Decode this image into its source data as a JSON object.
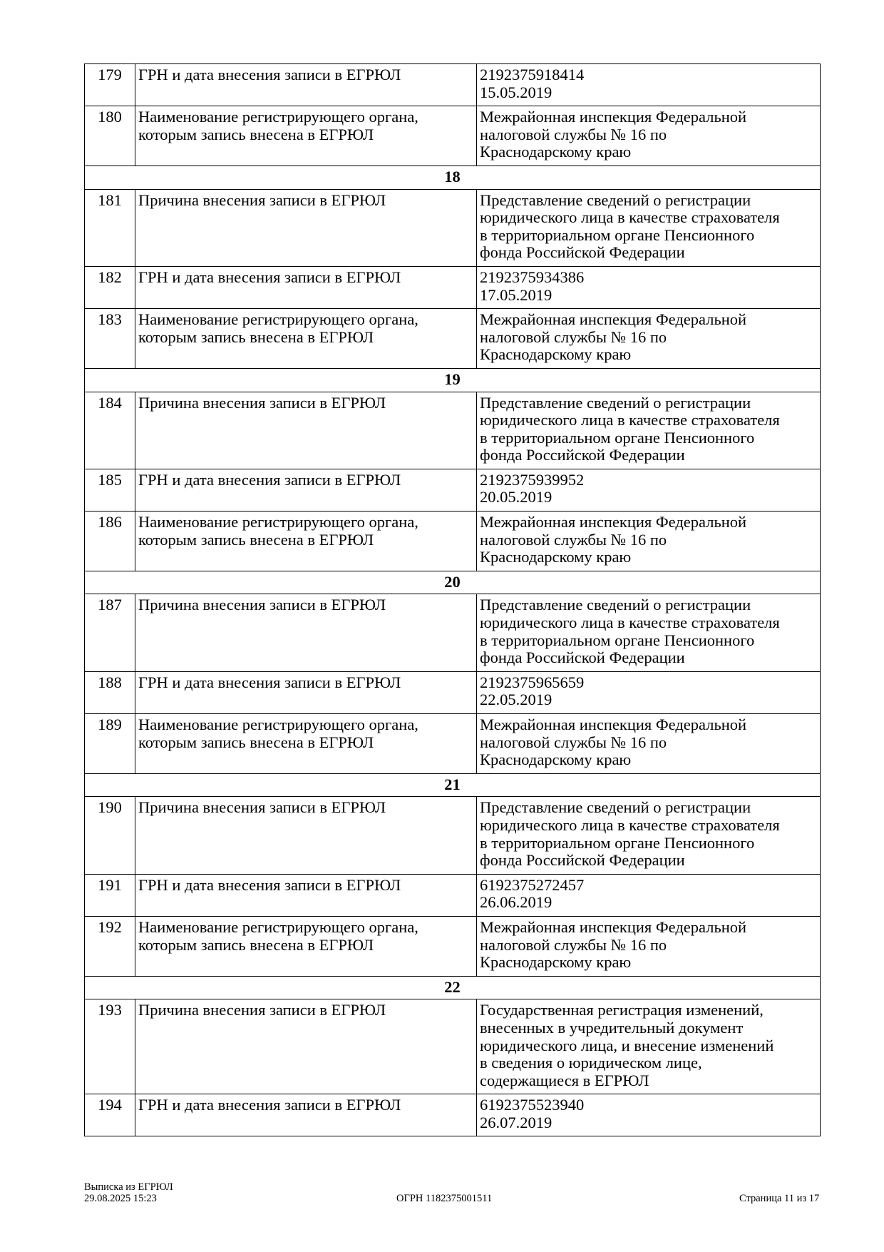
{
  "rows": [
    {
      "type": "row",
      "num": "179",
      "label": "ГРН и дата внесения записи в ЕГРЮЛ",
      "value": [
        "2192375918414",
        "15.05.2019"
      ]
    },
    {
      "type": "row",
      "num": "180",
      "label": "Наименование регистрирующего органа, которым запись внесена в ЕГРЮЛ",
      "value": [
        "Межрайонная инспекция Федеральной",
        "налоговой службы № 16 по",
        "Краснодарскому краю"
      ]
    },
    {
      "type": "section",
      "title": "18"
    },
    {
      "type": "row",
      "num": "181",
      "label": "Причина внесения записи в ЕГРЮЛ",
      "value": [
        "Представление сведений о регистрации",
        "юридического лица в качестве страхователя",
        "в территориальном органе Пенсионного",
        "фонда Российской Федерации"
      ]
    },
    {
      "type": "row",
      "num": "182",
      "label": "ГРН и дата внесения записи в ЕГРЮЛ",
      "value": [
        "2192375934386",
        "17.05.2019"
      ]
    },
    {
      "type": "row",
      "num": "183",
      "label": "Наименование регистрирующего органа, которым запись внесена в ЕГРЮЛ",
      "value": [
        "Межрайонная инспекция Федеральной",
        "налоговой службы № 16 по",
        "Краснодарскому краю"
      ]
    },
    {
      "type": "section",
      "title": "19"
    },
    {
      "type": "row",
      "num": "184",
      "label": "Причина внесения записи в ЕГРЮЛ",
      "value": [
        "Представление сведений о регистрации",
        "юридического лица в качестве страхователя",
        "в территориальном органе Пенсионного",
        "фонда Российской Федерации"
      ]
    },
    {
      "type": "row",
      "num": "185",
      "label": "ГРН и дата внесения записи в ЕГРЮЛ",
      "value": [
        "2192375939952",
        "20.05.2019"
      ]
    },
    {
      "type": "row",
      "num": "186",
      "label": "Наименование регистрирующего органа, которым запись внесена в ЕГРЮЛ",
      "value": [
        "Межрайонная инспекция Федеральной",
        "налоговой службы № 16 по",
        "Краснодарскому краю"
      ]
    },
    {
      "type": "section",
      "title": "20"
    },
    {
      "type": "row",
      "num": "187",
      "label": "Причина внесения записи в ЕГРЮЛ",
      "value": [
        "Представление сведений о регистрации",
        "юридического лица в качестве страхователя",
        "в территориальном органе Пенсионного",
        "фонда Российской Федерации"
      ]
    },
    {
      "type": "row",
      "num": "188",
      "label": "ГРН и дата внесения записи в ЕГРЮЛ",
      "value": [
        "2192375965659",
        "22.05.2019"
      ]
    },
    {
      "type": "row",
      "num": "189",
      "label": "Наименование регистрирующего органа, которым запись внесена в ЕГРЮЛ",
      "value": [
        "Межрайонная инспекция Федеральной",
        "налоговой службы № 16 по",
        "Краснодарскому краю"
      ]
    },
    {
      "type": "section",
      "title": "21"
    },
    {
      "type": "row",
      "num": "190",
      "label": "Причина внесения записи в ЕГРЮЛ",
      "value": [
        "Представление сведений о регистрации",
        "юридического лица в качестве страхователя",
        "в территориальном органе Пенсионного",
        "фонда Российской Федерации"
      ]
    },
    {
      "type": "row",
      "num": "191",
      "label": "ГРН и дата внесения записи в ЕГРЮЛ",
      "value": [
        "6192375272457",
        "26.06.2019"
      ]
    },
    {
      "type": "row",
      "num": "192",
      "label": "Наименование регистрирующего органа, которым запись внесена в ЕГРЮЛ",
      "value": [
        "Межрайонная инспекция Федеральной",
        "налоговой службы № 16 по",
        "Краснодарскому краю"
      ]
    },
    {
      "type": "section",
      "title": "22"
    },
    {
      "type": "row",
      "num": "193",
      "label": "Причина внесения записи в ЕГРЮЛ",
      "value": [
        "Государственная регистрация изменений,",
        "внесенных в учредительный документ",
        "юридического лица, и внесение изменений",
        "в сведения о юридическом лице,",
        "содержащиеся в ЕГРЮЛ"
      ]
    },
    {
      "type": "row",
      "num": "194",
      "label": "ГРН и дата внесения записи в ЕГРЮЛ",
      "value": [
        "6192375523940",
        "26.07.2019"
      ]
    }
  ],
  "footer": {
    "doc_title": "Выписка из ЕГРЮЛ",
    "datetime": "29.08.2025 15:23",
    "ogrn": "ОГРН 1182375001511",
    "page": "Страница 11 из 17"
  }
}
